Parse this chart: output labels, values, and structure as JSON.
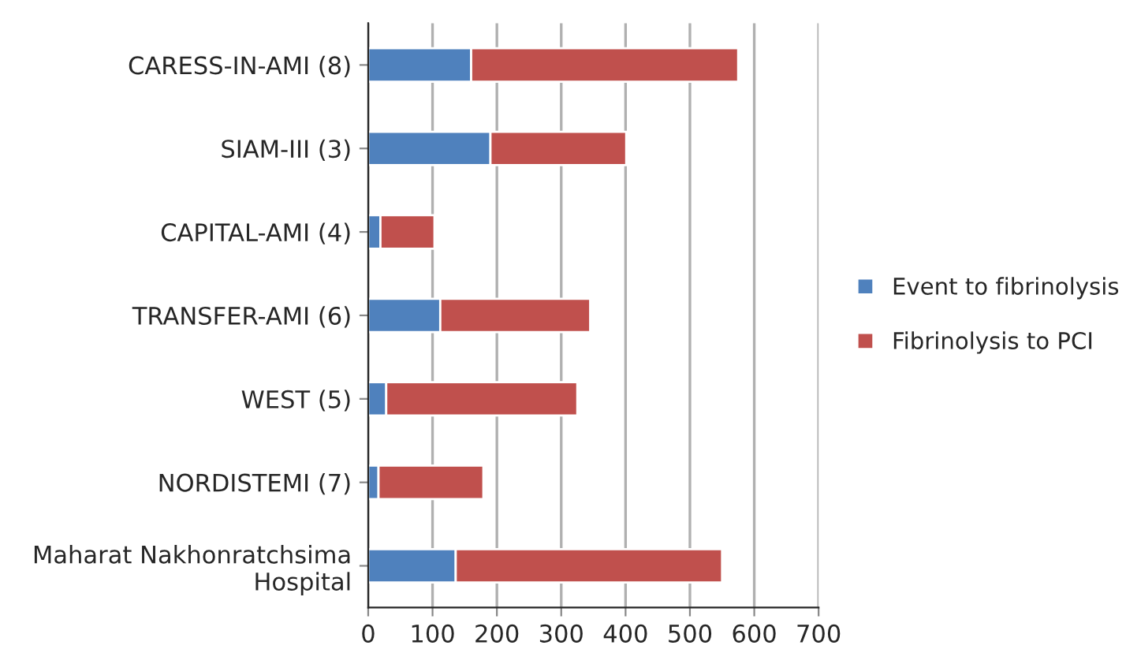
{
  "chart_data": {
    "type": "bar",
    "orientation": "horizontal",
    "stacked": true,
    "categories": [
      "CARESS-IN-AMI (8)",
      "SIAM-III (3)",
      "CAPITAL-AMI (4)",
      "TRANSFER-AMI (6)",
      "WEST (5)",
      "NORDISTEMI (7)",
      "Maharat Nakhonratchsima Hospital"
    ],
    "series": [
      {
        "name": "Event to fibrinolysis",
        "color": "#4f81bd",
        "values": [
          160,
          190,
          19,
          112,
          28,
          16,
          136
        ]
      },
      {
        "name": "Fibrinolysis to PCI",
        "color": "#c0504d",
        "values": [
          415,
          211,
          84,
          233,
          297,
          163,
          414
        ]
      }
    ],
    "xlim": [
      0,
      700
    ],
    "xticks": [
      0,
      100,
      200,
      300,
      400,
      500,
      600,
      700
    ],
    "grid": "x",
    "legend": "right"
  }
}
